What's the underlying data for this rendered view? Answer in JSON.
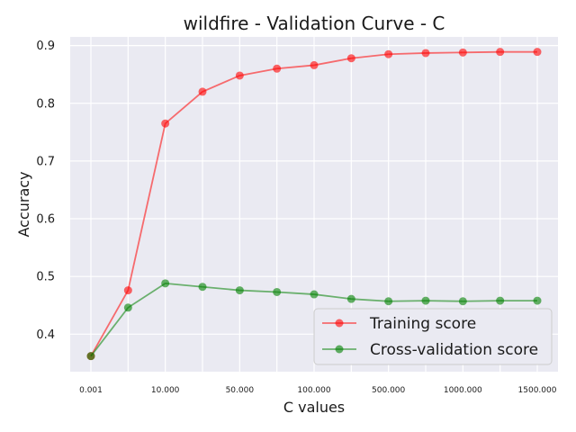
{
  "chart_data": {
    "type": "line",
    "title": "wildfire - Validation Curve - C",
    "xlabel": "C values",
    "ylabel": "Accuracy",
    "x_tick_labels": [
      "0.001",
      "10.000",
      "50.000",
      "100.000",
      "500.000",
      "1000.000",
      "1500.000"
    ],
    "x_tick_positions": [
      0,
      2,
      4,
      6,
      8,
      10,
      12
    ],
    "x_point_indices": [
      0,
      1,
      2,
      3,
      4,
      5,
      6,
      7,
      8,
      9,
      10,
      11,
      12
    ],
    "ylim": [
      0.335,
      0.915
    ],
    "y_ticks": [
      0.4,
      0.5,
      0.6,
      0.7,
      0.8,
      0.9
    ],
    "y_tick_labels": [
      "0.4",
      "0.5",
      "0.6",
      "0.7",
      "0.8",
      "0.9"
    ],
    "grid": true,
    "legend_position": "bottom-right",
    "series": [
      {
        "name": "Training score",
        "color": "#ff0000",
        "values": [
          0.362,
          0.476,
          0.765,
          0.82,
          0.848,
          0.86,
          0.866,
          0.878,
          0.885,
          0.887,
          0.888,
          0.889,
          0.889
        ]
      },
      {
        "name": "Cross-validation score",
        "color": "#008000",
        "values": [
          0.362,
          0.446,
          0.488,
          0.482,
          0.476,
          0.473,
          0.469,
          0.461,
          0.457,
          0.458,
          0.457,
          0.458,
          0.458
        ]
      }
    ]
  }
}
